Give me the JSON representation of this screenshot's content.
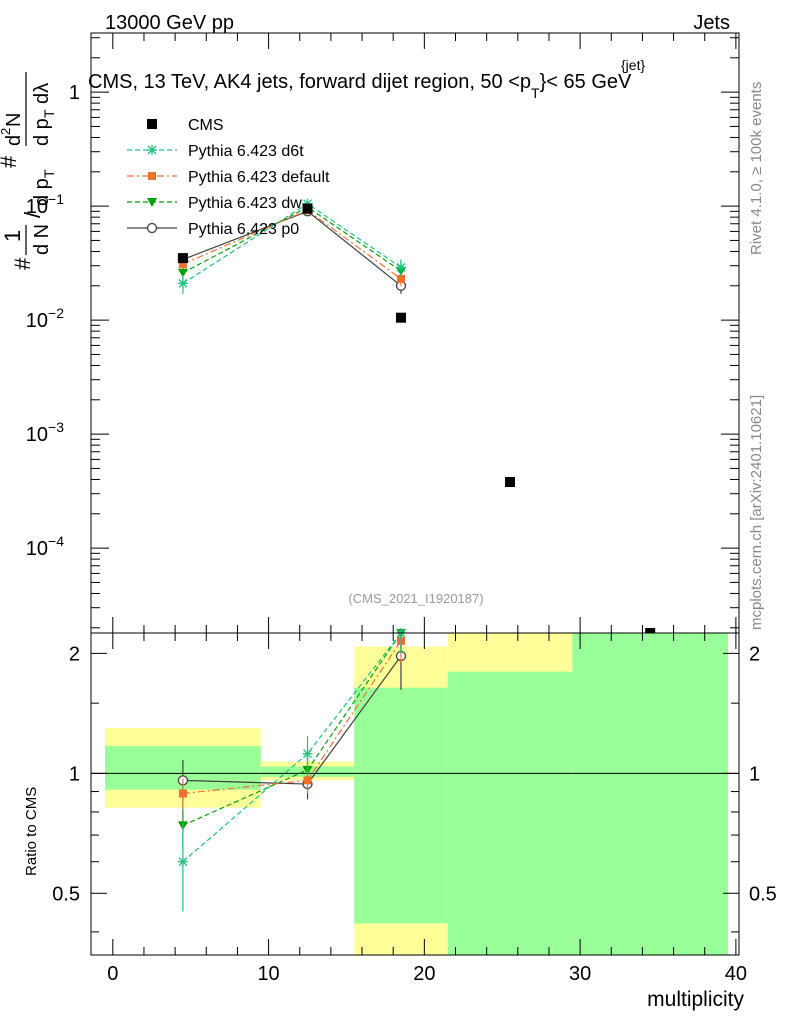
{
  "header": {
    "left": "13000 GeV pp",
    "right": "Jets",
    "title": "CMS, 13 TeV, AK4 jets, forward dijet region, 50 <p",
    "title_sup": "{jet}",
    "title_sub": "T",
    "title_end": "}< 65 GeV",
    "side_top": "Rivet 4.1.0, ≥ 100k events",
    "side_bottom": "mcplots.cern.ch [arXiv:2401.10621]",
    "watermark": "(CMS_2021_I1920187)"
  },
  "chart_data": [
    {
      "type": "scatter",
      "panel": "main",
      "ylabel": "1/N dN/dp_T dλ (log)",
      "ylabel_parts": {
        "num1": "1",
        "dN": "d N",
        "slash": "/",
        "dpT": "d p",
        "sub_T": "T",
        "hash": "#",
        "d2N": "d",
        "sup2": "2",
        "N": "N",
        "dpT2": "d p",
        "sub_T2": "T",
        "dl": "dλ",
        "hash2": "#"
      },
      "yscale": "log",
      "ylim": [
        1.8e-05,
        3.3
      ],
      "xlim": [
        -1.4,
        40.2
      ],
      "yticks": [
        {
          "v": 1,
          "m": "1",
          "e": ""
        },
        {
          "v": 0.1,
          "m": "10",
          "e": "−1"
        },
        {
          "v": 0.01,
          "m": "10",
          "e": "−2"
        },
        {
          "v": 0.001,
          "m": "10",
          "e": "−3"
        },
        {
          "v": 0.0001,
          "m": "10",
          "e": "−4"
        }
      ],
      "series": [
        {
          "name": "CMS",
          "color": "#000000",
          "marker": "square",
          "line": "none",
          "x": [
            4.5,
            12.5,
            18.5,
            25.5,
            34.5
          ],
          "y": [
            0.035,
            0.095,
            0.0105,
            0.00038,
            1.75e-05
          ],
          "err": [
            0.002,
            0.004,
            0.0005,
            3e-05,
            0.0
          ]
        },
        {
          "name": "Pythia 6.423 d6t",
          "color": "#20c080",
          "marker": "star",
          "line": "dashed",
          "x": [
            4.5,
            12.5,
            18.5
          ],
          "y": [
            0.021,
            0.105,
            0.029
          ],
          "err": [
            0.004,
            0.008,
            0.005
          ]
        },
        {
          "name": "Pythia 6.423 default",
          "color": "#f07030",
          "marker": "square",
          "line": "dashdot",
          "x": [
            4.5,
            12.5,
            18.5
          ],
          "y": [
            0.031,
            0.092,
            0.023
          ],
          "err": [
            0.003,
            0.006,
            0.003
          ]
        },
        {
          "name": "Pythia 6.423 dw",
          "color": "#00a000",
          "marker": "triangle",
          "line": "dashed",
          "x": [
            4.5,
            12.5,
            18.5
          ],
          "y": [
            0.026,
            0.098,
            0.027
          ],
          "err": [
            0.003,
            0.007,
            0.004
          ]
        },
        {
          "name": "Pythia 6.423 p0",
          "color": "#404040",
          "marker": "circle",
          "line": "solid",
          "x": [
            4.5,
            12.5,
            18.5
          ],
          "y": [
            0.034,
            0.09,
            0.02
          ],
          "err": [
            0.003,
            0.006,
            0.003
          ]
        }
      ]
    },
    {
      "type": "scatter",
      "panel": "ratio",
      "ylabel": "Ratio to CMS",
      "xlabel": "multiplicity",
      "ylim": [
        0.35,
        2.25
      ],
      "xlim": [
        -1.4,
        40.2
      ],
      "xticks": [
        0,
        10,
        20,
        30,
        40
      ],
      "yticks": [
        0.5,
        1,
        2
      ],
      "bands": [
        {
          "x0": -0.5,
          "x1": 9.5,
          "yellow": [
            0.82,
            1.3
          ],
          "green": [
            0.91,
            1.17
          ]
        },
        {
          "x0": 9.5,
          "x1": 15.5,
          "yellow": [
            0.96,
            1.07
          ],
          "green": [
            0.98,
            1.04
          ]
        },
        {
          "x0": 15.5,
          "x1": 21.5,
          "yellow": [
            0.35,
            2.08
          ],
          "green": [
            0.42,
            1.64
          ]
        },
        {
          "x0": 21.5,
          "x1": 29.5,
          "yellow": [
            0.35,
            2.25
          ],
          "green": [
            0.35,
            1.8
          ]
        },
        {
          "x0": 29.5,
          "x1": 39.5,
          "yellow": [
            0.35,
            2.25
          ],
          "green": [
            0.35,
            2.25
          ]
        }
      ],
      "series": [
        {
          "name": "Pythia 6.423 d6t",
          "color": "#20c080",
          "marker": "star",
          "line": "dashed",
          "x": [
            4.5,
            12.5,
            18.5
          ],
          "y": [
            0.6,
            1.12,
            2.3
          ],
          "err": [
            0.15,
            0.12,
            0.3
          ]
        },
        {
          "name": "Pythia 6.423 default",
          "color": "#f07030",
          "marker": "square",
          "line": "dashdot",
          "x": [
            4.5,
            12.5,
            18.5
          ],
          "y": [
            0.89,
            0.96,
            2.15
          ],
          "err": [
            0.08,
            0.07,
            0.25
          ]
        },
        {
          "name": "Pythia 6.423 dw",
          "color": "#00a000",
          "marker": "triangle",
          "line": "dashed",
          "x": [
            4.5,
            12.5,
            18.5
          ],
          "y": [
            0.74,
            1.02,
            2.3
          ],
          "err": [
            0.1,
            0.08,
            0.3
          ]
        },
        {
          "name": "Pythia 6.423 p0",
          "color": "#404040",
          "marker": "circle",
          "line": "solid",
          "x": [
            4.5,
            12.5,
            18.5
          ],
          "y": [
            0.96,
            0.94,
            1.97
          ],
          "err": [
            0.12,
            0.08,
            0.35
          ]
        }
      ]
    }
  ]
}
